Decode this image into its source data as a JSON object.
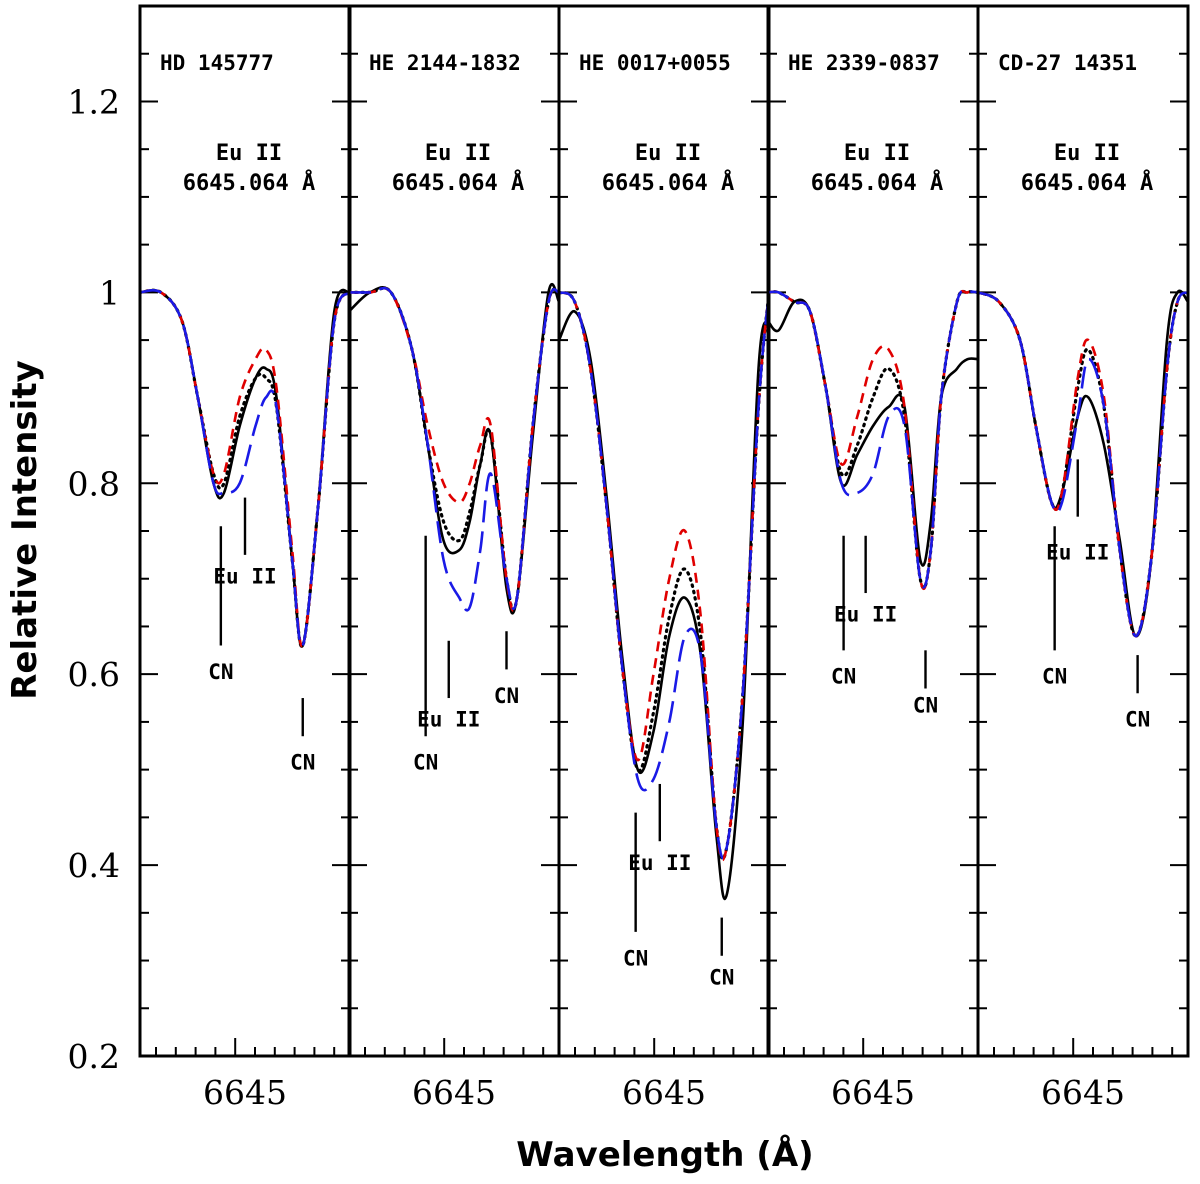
{
  "chart_data": {
    "type": "line",
    "ylabel": "Relative Intensity",
    "xlabel": "Wavelength (Å)",
    "ylim": [
      0.2,
      1.3
    ],
    "xlim": [
      6644.0,
      6646.0
    ],
    "yticks": [
      0.2,
      0.4,
      0.6,
      0.8,
      1,
      1.2
    ],
    "yticks_labels": [
      "0.2",
      "0.4",
      "0.6",
      "0.8",
      "1",
      "1.2"
    ],
    "xtick_label": "6645",
    "xtick_value": 6645,
    "line_label_1": "Eu II",
    "line_label_2": "6645.064 Å",
    "colors": {
      "observed": "#000000",
      "best": "#000000",
      "high": "#e00000",
      "low": "#1a1ae6"
    },
    "panels": [
      {
        "star": "HD 145777",
        "markers": [
          {
            "label": "CN",
            "x": 6644.77,
            "top": 0.755,
            "bottom": 0.63,
            "text_y": 0.595
          },
          {
            "label": "Eu II",
            "x": 6645.0,
            "top": 0.785,
            "bottom": 0.725,
            "text_y": 0.695
          },
          {
            "label": "CN",
            "x": 6645.55,
            "top": 0.575,
            "bottom": 0.535,
            "text_y": 0.5
          }
        ],
        "series": [
          {
            "name": "observed",
            "x": [
              6644.0,
              6644.2,
              6644.4,
              6644.55,
              6644.7,
              6644.8,
              6644.95,
              6645.1,
              6645.2,
              6645.3,
              6645.45,
              6645.55,
              6645.7,
              6645.85,
              6646.0
            ],
            "y": [
              1.0,
              1.0,
              0.97,
              0.89,
              0.8,
              0.79,
              0.86,
              0.91,
              0.92,
              0.89,
              0.72,
              0.63,
              0.78,
              0.98,
              1.0
            ]
          },
          {
            "name": "best",
            "x": [
              6644.0,
              6644.2,
              6644.4,
              6644.55,
              6644.7,
              6644.8,
              6644.95,
              6645.1,
              6645.2,
              6645.3,
              6645.45,
              6645.55,
              6645.7,
              6645.85,
              6646.0
            ],
            "y": [
              1.0,
              1.0,
              0.97,
              0.89,
              0.81,
              0.8,
              0.87,
              0.91,
              0.91,
              0.88,
              0.72,
              0.63,
              0.78,
              0.97,
              1.0
            ]
          },
          {
            "name": "high",
            "x": [
              6644.0,
              6644.2,
              6644.4,
              6644.55,
              6644.7,
              6644.8,
              6644.95,
              6645.1,
              6645.2,
              6645.3,
              6645.45,
              6645.55,
              6645.7,
              6645.85,
              6646.0
            ],
            "y": [
              1.0,
              1.0,
              0.97,
              0.89,
              0.81,
              0.81,
              0.89,
              0.93,
              0.94,
              0.9,
              0.73,
              0.63,
              0.78,
              0.97,
              1.0
            ]
          },
          {
            "name": "low",
            "x": [
              6644.0,
              6644.2,
              6644.4,
              6644.55,
              6644.7,
              6644.8,
              6644.95,
              6645.1,
              6645.2,
              6645.3,
              6645.45,
              6645.55,
              6645.7,
              6645.85,
              6646.0
            ],
            "y": [
              1.0,
              1.0,
              0.97,
              0.89,
              0.8,
              0.79,
              0.8,
              0.86,
              0.89,
              0.88,
              0.72,
              0.63,
              0.78,
              0.97,
              1.0
            ]
          }
        ]
      },
      {
        "star": "HE 2144-1832",
        "markers": [
          {
            "label": "CN",
            "x": 6644.73,
            "top": 0.745,
            "bottom": 0.535,
            "text_y": 0.5
          },
          {
            "label": "Eu II",
            "x": 6644.95,
            "top": 0.635,
            "bottom": 0.575,
            "text_y": 0.545
          },
          {
            "label": "CN",
            "x": 6645.5,
            "top": 0.645,
            "bottom": 0.605,
            "text_y": 0.57
          }
        ],
        "series": [
          {
            "name": "observed",
            "x": [
              6644.0,
              6644.2,
              6644.4,
              6644.6,
              6644.75,
              6644.9,
              6645.05,
              6645.15,
              6645.25,
              6645.35,
              6645.5,
              6645.6,
              6645.75,
              6645.9,
              6646.0
            ],
            "y": [
              0.98,
              1.0,
              1.0,
              0.94,
              0.84,
              0.74,
              0.73,
              0.76,
              0.82,
              0.85,
              0.69,
              0.68,
              0.85,
              1.0,
              0.99
            ]
          },
          {
            "name": "best",
            "x": [
              6644.0,
              6644.2,
              6644.4,
              6644.6,
              6644.75,
              6644.9,
              6645.05,
              6645.15,
              6645.25,
              6645.35,
              6645.5,
              6645.6,
              6645.75,
              6645.9,
              6646.0
            ],
            "y": [
              1.0,
              1.0,
              1.0,
              0.94,
              0.84,
              0.76,
              0.74,
              0.77,
              0.82,
              0.85,
              0.7,
              0.68,
              0.86,
              0.99,
              1.0
            ]
          },
          {
            "name": "high",
            "x": [
              6644.0,
              6644.2,
              6644.4,
              6644.6,
              6644.75,
              6644.9,
              6645.05,
              6645.15,
              6645.25,
              6645.35,
              6645.5,
              6645.6,
              6645.75,
              6645.9,
              6646.0
            ],
            "y": [
              1.0,
              1.0,
              1.0,
              0.94,
              0.86,
              0.8,
              0.78,
              0.8,
              0.84,
              0.86,
              0.7,
              0.68,
              0.86,
              0.99,
              1.0
            ]
          },
          {
            "name": "low",
            "x": [
              6644.0,
              6644.2,
              6644.4,
              6644.6,
              6644.75,
              6644.9,
              6645.05,
              6645.15,
              6645.25,
              6645.35,
              6645.5,
              6645.6,
              6645.75,
              6645.9,
              6646.0
            ],
            "y": [
              1.0,
              1.0,
              1.0,
              0.94,
              0.84,
              0.72,
              0.68,
              0.67,
              0.73,
              0.81,
              0.7,
              0.68,
              0.86,
              0.99,
              1.0
            ]
          }
        ]
      },
      {
        "star": "HE 0017+0055",
        "markers": [
          {
            "label": "CN",
            "x": 6644.73,
            "top": 0.455,
            "bottom": 0.33,
            "text_y": 0.295
          },
          {
            "label": "Eu II",
            "x": 6644.96,
            "top": 0.485,
            "bottom": 0.425,
            "text_y": 0.395
          },
          {
            "label": "CN",
            "x": 6645.55,
            "top": 0.345,
            "bottom": 0.305,
            "text_y": 0.275
          }
        ],
        "series": [
          {
            "name": "observed",
            "x": [
              6644.0,
              6644.15,
              6644.3,
              6644.45,
              6644.6,
              6644.75,
              6644.9,
              6645.05,
              6645.2,
              6645.35,
              6645.5,
              6645.6,
              6645.75,
              6645.9,
              6646.0
            ],
            "y": [
              0.95,
              0.98,
              0.93,
              0.79,
              0.62,
              0.5,
              0.54,
              0.64,
              0.68,
              0.62,
              0.43,
              0.37,
              0.55,
              0.92,
              0.97
            ]
          },
          {
            "name": "best",
            "x": [
              6644.0,
              6644.15,
              6644.3,
              6644.45,
              6644.6,
              6644.75,
              6644.9,
              6645.05,
              6645.2,
              6645.35,
              6645.5,
              6645.6,
              6645.75,
              6645.9,
              6646.0
            ],
            "y": [
              1.0,
              0.99,
              0.92,
              0.78,
              0.61,
              0.5,
              0.56,
              0.66,
              0.71,
              0.64,
              0.44,
              0.42,
              0.58,
              0.88,
              1.0
            ]
          },
          {
            "name": "high",
            "x": [
              6644.0,
              6644.15,
              6644.3,
              6644.45,
              6644.6,
              6644.75,
              6644.9,
              6645.05,
              6645.2,
              6645.35,
              6645.5,
              6645.6,
              6645.75,
              6645.9,
              6646.0
            ],
            "y": [
              1.0,
              0.99,
              0.92,
              0.78,
              0.61,
              0.51,
              0.6,
              0.7,
              0.75,
              0.66,
              0.44,
              0.42,
              0.58,
              0.88,
              1.0
            ]
          },
          {
            "name": "low",
            "x": [
              6644.0,
              6644.15,
              6644.3,
              6644.45,
              6644.6,
              6644.75,
              6644.9,
              6645.05,
              6645.2,
              6645.35,
              6645.5,
              6645.6,
              6645.75,
              6645.9,
              6646.0
            ],
            "y": [
              1.0,
              0.99,
              0.92,
              0.78,
              0.61,
              0.49,
              0.49,
              0.55,
              0.64,
              0.62,
              0.44,
              0.42,
              0.58,
              0.88,
              1.0
            ]
          }
        ]
      },
      {
        "star": "HE 2339-0837",
        "markers": [
          {
            "label": "CN",
            "x": 6644.72,
            "top": 0.745,
            "bottom": 0.625,
            "text_y": 0.59
          },
          {
            "label": "Eu II",
            "x": 6644.93,
            "top": 0.745,
            "bottom": 0.685,
            "text_y": 0.655
          },
          {
            "label": "CN",
            "x": 6645.5,
            "top": 0.625,
            "bottom": 0.585,
            "text_y": 0.56
          }
        ],
        "series": [
          {
            "name": "observed",
            "x": [
              6644.0,
              6644.1,
              6644.25,
              6644.4,
              6644.55,
              6644.7,
              6644.85,
              6645.0,
              6645.15,
              6645.3,
              6645.45,
              6645.55,
              6645.65,
              6645.8,
              6645.9,
              6646.0
            ],
            "y": [
              0.97,
              0.96,
              0.99,
              0.98,
              0.9,
              0.8,
              0.83,
              0.86,
              0.88,
              0.88,
              0.72,
              0.76,
              0.89,
              0.92,
              0.93,
              0.93
            ]
          },
          {
            "name": "best",
            "x": [
              6644.0,
              6644.1,
              6644.25,
              6644.4,
              6644.55,
              6644.7,
              6644.85,
              6645.0,
              6645.15,
              6645.3,
              6645.45,
              6645.55,
              6645.65,
              6645.8,
              6645.9,
              6646.0
            ],
            "y": [
              1.0,
              1.0,
              0.99,
              0.98,
              0.9,
              0.81,
              0.84,
              0.89,
              0.92,
              0.87,
              0.7,
              0.73,
              0.89,
              0.99,
              1.0,
              1.0
            ]
          },
          {
            "name": "high",
            "x": [
              6644.0,
              6644.1,
              6644.25,
              6644.4,
              6644.55,
              6644.7,
              6644.85,
              6645.0,
              6645.15,
              6645.3,
              6645.45,
              6645.55,
              6645.65,
              6645.8,
              6645.9,
              6646.0
            ],
            "y": [
              1.0,
              1.0,
              0.99,
              0.98,
              0.9,
              0.82,
              0.87,
              0.93,
              0.94,
              0.88,
              0.7,
              0.73,
              0.89,
              0.99,
              1.0,
              1.0
            ]
          },
          {
            "name": "low",
            "x": [
              6644.0,
              6644.1,
              6644.25,
              6644.4,
              6644.55,
              6644.7,
              6644.85,
              6645.0,
              6645.15,
              6645.3,
              6645.45,
              6645.55,
              6645.65,
              6645.8,
              6645.9,
              6646.0
            ],
            "y": [
              1.0,
              1.0,
              0.99,
              0.98,
              0.9,
              0.8,
              0.79,
              0.81,
              0.87,
              0.86,
              0.7,
              0.73,
              0.89,
              0.99,
              1.0,
              1.0
            ]
          }
        ]
      },
      {
        "star": "CD-27 14351",
        "markers": [
          {
            "label": "CN",
            "x": 6644.73,
            "top": 0.755,
            "bottom": 0.625,
            "text_y": 0.59
          },
          {
            "label": "Eu II",
            "x": 6644.95,
            "top": 0.825,
            "bottom": 0.765,
            "text_y": 0.72
          },
          {
            "label": "CN",
            "x": 6645.52,
            "top": 0.62,
            "bottom": 0.58,
            "text_y": 0.545
          }
        ],
        "series": [
          {
            "name": "observed",
            "x": [
              6644.0,
              6644.2,
              6644.4,
              6644.55,
              6644.7,
              6644.8,
              6644.95,
              6645.05,
              6645.2,
              6645.35,
              6645.5,
              6645.65,
              6645.8,
              6645.9,
              6646.0
            ],
            "y": [
              1.0,
              0.99,
              0.95,
              0.86,
              0.78,
              0.79,
              0.87,
              0.89,
              0.84,
              0.74,
              0.64,
              0.72,
              0.95,
              1.0,
              0.99
            ]
          },
          {
            "name": "best",
            "x": [
              6644.0,
              6644.2,
              6644.4,
              6644.55,
              6644.7,
              6644.8,
              6644.95,
              6645.05,
              6645.2,
              6645.35,
              6645.5,
              6645.65,
              6645.8,
              6645.9,
              6646.0
            ],
            "y": [
              1.0,
              0.99,
              0.95,
              0.86,
              0.78,
              0.79,
              0.9,
              0.94,
              0.88,
              0.73,
              0.64,
              0.72,
              0.92,
              0.99,
              1.0
            ]
          },
          {
            "name": "high",
            "x": [
              6644.0,
              6644.2,
              6644.4,
              6644.55,
              6644.7,
              6644.8,
              6644.95,
              6645.05,
              6645.2,
              6645.35,
              6645.5,
              6645.65,
              6645.8,
              6645.9,
              6646.0
            ],
            "y": [
              1.0,
              0.99,
              0.95,
              0.86,
              0.78,
              0.79,
              0.91,
              0.95,
              0.89,
              0.73,
              0.64,
              0.72,
              0.92,
              0.99,
              1.0
            ]
          },
          {
            "name": "low",
            "x": [
              6644.0,
              6644.2,
              6644.4,
              6644.55,
              6644.7,
              6644.8,
              6644.95,
              6645.05,
              6645.2,
              6645.35,
              6645.5,
              6645.65,
              6645.8,
              6645.9,
              6646.0
            ],
            "y": [
              1.0,
              0.99,
              0.95,
              0.86,
              0.78,
              0.78,
              0.87,
              0.93,
              0.88,
              0.73,
              0.64,
              0.72,
              0.92,
              0.99,
              1.0
            ]
          }
        ]
      }
    ]
  }
}
